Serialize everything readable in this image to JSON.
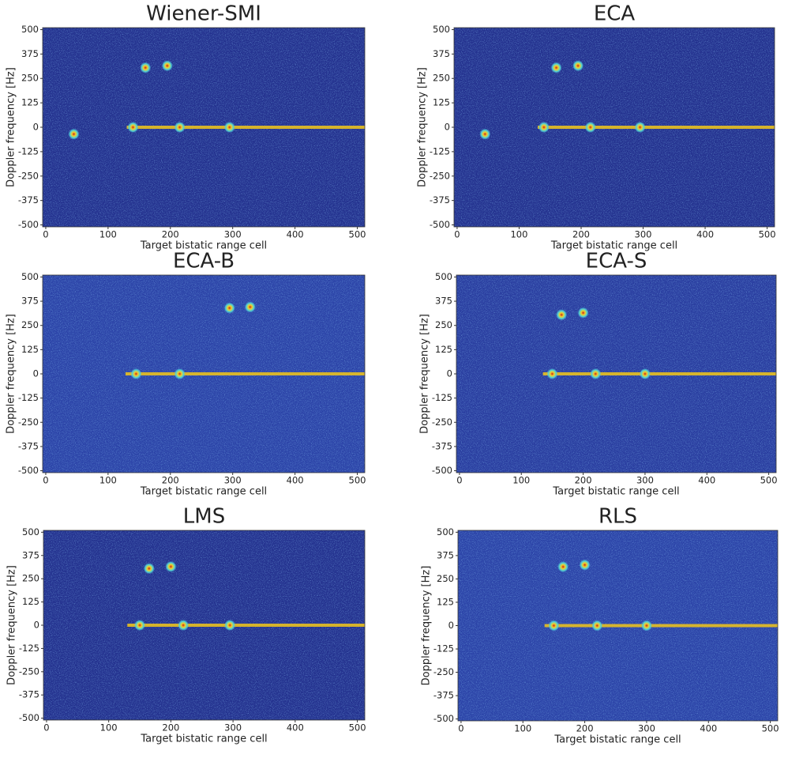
{
  "chart_data": [
    {
      "type": "heatmap",
      "title": "Wiener-SMI",
      "xlabel": "Target bistatic range cell",
      "ylabel": "Doppler frequency [Hz]",
      "xlim": [
        -5,
        512
      ],
      "ylim": [
        -510,
        510
      ],
      "xticks": [
        0,
        100,
        200,
        300,
        400,
        500
      ],
      "yticks": [
        -500,
        -375,
        -250,
        -125,
        0,
        125,
        250,
        375,
        500
      ],
      "background": "#24328f",
      "ridge": {
        "x": [
          130,
          512
        ],
        "y": [
          0,
          0
        ]
      },
      "hotspots": {
        "x": [
          45,
          160,
          195,
          140,
          215,
          295
        ],
        "y": [
          -35,
          305,
          315,
          0,
          0,
          0
        ]
      }
    },
    {
      "type": "heatmap",
      "title": "ECA",
      "xlabel": "Target bistatic range cell",
      "ylabel": "Doppler frequency [Hz]",
      "xlim": [
        -5,
        512
      ],
      "ylim": [
        -510,
        510
      ],
      "xticks": [
        0,
        100,
        200,
        300,
        400,
        500
      ],
      "yticks": [
        -500,
        -375,
        -250,
        -125,
        0,
        125,
        250,
        375,
        500
      ],
      "background": "#24328f",
      "ridge": {
        "x": [
          130,
          512
        ],
        "y": [
          0,
          0
        ]
      },
      "hotspots": {
        "x": [
          45,
          160,
          195,
          140,
          215,
          295
        ],
        "y": [
          -35,
          305,
          315,
          0,
          0,
          0
        ]
      }
    },
    {
      "type": "heatmap",
      "title": "ECA-B",
      "xlabel": "Target bistatic range cell",
      "ylabel": "Doppler frequency [Hz]",
      "xlim": [
        -5,
        512
      ],
      "ylim": [
        -510,
        510
      ],
      "xticks": [
        0,
        100,
        200,
        300,
        400,
        500
      ],
      "yticks": [
        -500,
        -375,
        -250,
        -125,
        0,
        125,
        250,
        375,
        500
      ],
      "background": "#2c44a8",
      "ridge": {
        "x": [
          128,
          512
        ],
        "y": [
          0,
          0
        ]
      },
      "hotspots": {
        "x": [
          295,
          328,
          145,
          215
        ],
        "y": [
          340,
          345,
          0,
          0
        ]
      }
    },
    {
      "type": "heatmap",
      "title": "ECA-S",
      "xlabel": "Target bistatic range cell",
      "ylabel": "Doppler frequency [Hz]",
      "xlim": [
        -5,
        512
      ],
      "ylim": [
        -510,
        510
      ],
      "xticks": [
        0,
        100,
        200,
        300,
        400,
        500
      ],
      "yticks": [
        -500,
        -375,
        -250,
        -125,
        0,
        125,
        250,
        375,
        500
      ],
      "background": "#2a3ea0",
      "ridge": {
        "x": [
          135,
          512
        ],
        "y": [
          0,
          0
        ]
      },
      "hotspots": {
        "x": [
          165,
          200,
          150,
          220,
          300
        ],
        "y": [
          305,
          315,
          0,
          0,
          0
        ]
      }
    },
    {
      "type": "heatmap",
      "title": "LMS",
      "xlabel": "Target bistatic range cell",
      "ylabel": "Doppler frequency [Hz]",
      "xlim": [
        -5,
        512
      ],
      "ylim": [
        -510,
        510
      ],
      "xticks": [
        0,
        100,
        200,
        300,
        400,
        500
      ],
      "yticks": [
        -500,
        -375,
        -250,
        -125,
        0,
        125,
        250,
        375,
        500
      ],
      "background": "#24328f",
      "ridge": {
        "x": [
          130,
          512
        ],
        "y": [
          0,
          0
        ]
      },
      "hotspots": {
        "x": [
          165,
          200,
          150,
          220,
          295
        ],
        "y": [
          305,
          315,
          0,
          0,
          0
        ]
      }
    },
    {
      "type": "heatmap",
      "title": "RLS",
      "xlabel": "Target bistatic range cell",
      "ylabel": "Doppler frequency [Hz]",
      "xlim": [
        -5,
        512
      ],
      "ylim": [
        -510,
        510
      ],
      "xticks": [
        0,
        100,
        200,
        300,
        400,
        500
      ],
      "yticks": [
        -500,
        -375,
        -250,
        -125,
        0,
        125,
        250,
        375,
        500
      ],
      "background": "#2c44a8",
      "ridge": {
        "x": [
          135,
          512
        ],
        "y": [
          0,
          0
        ]
      },
      "hotspots": {
        "x": [
          165,
          200,
          150,
          220,
          300
        ],
        "y": [
          315,
          325,
          0,
          0,
          0
        ]
      }
    }
  ]
}
